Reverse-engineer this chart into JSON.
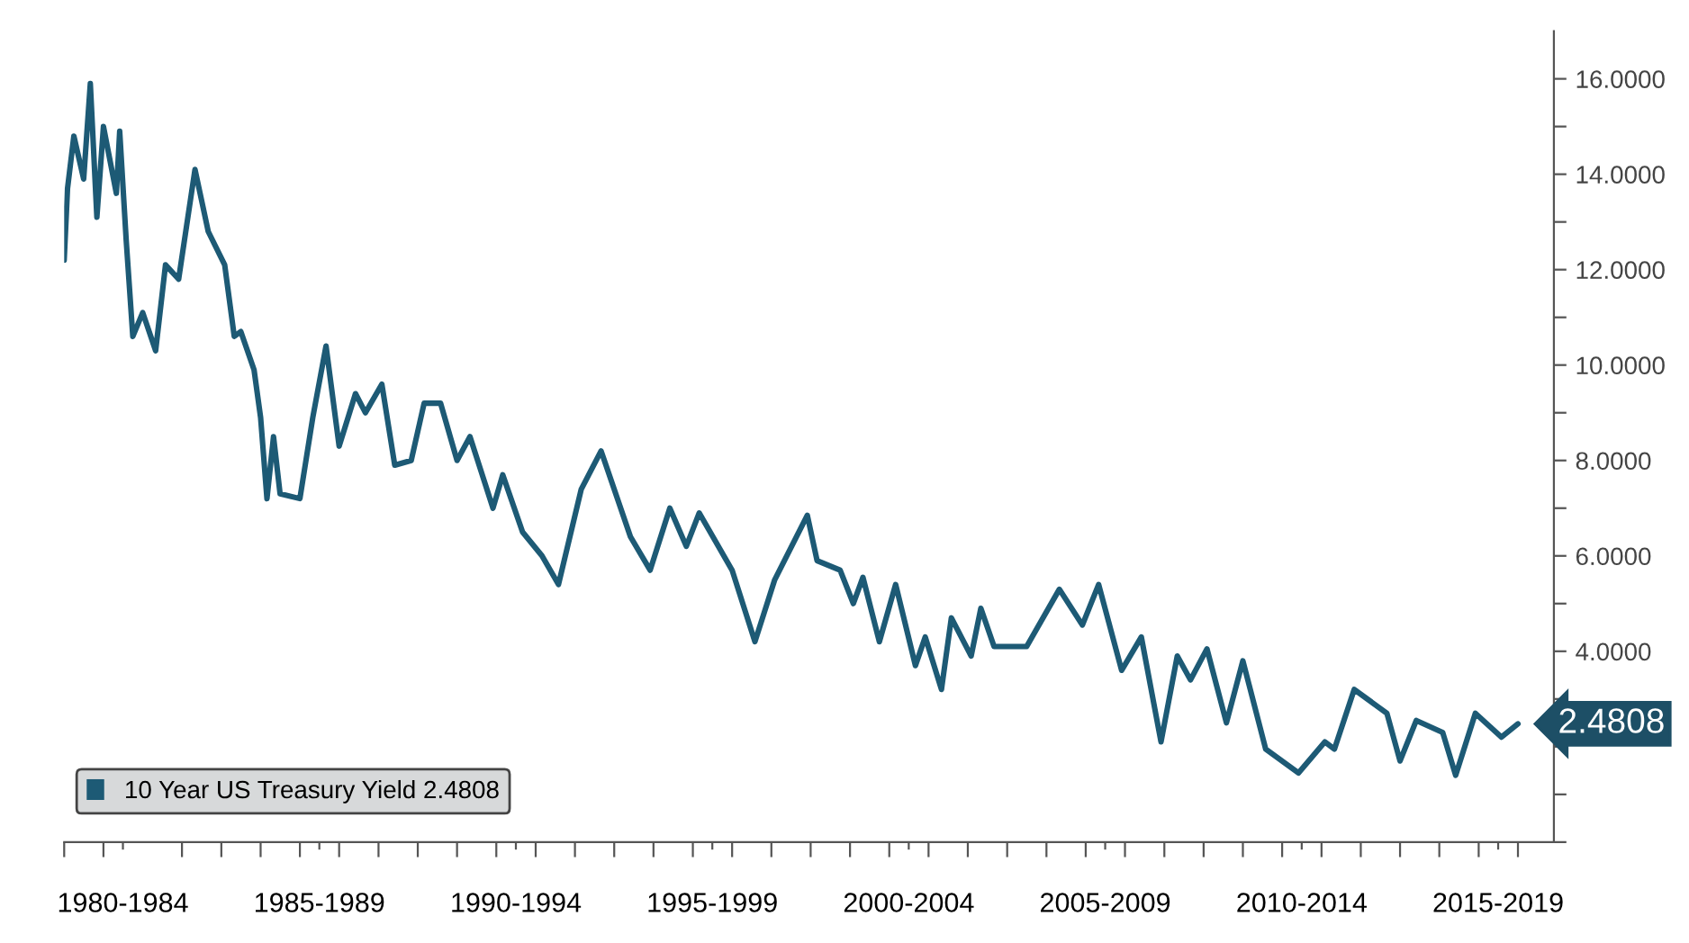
{
  "chart_data": {
    "type": "line",
    "series": [
      {
        "name": "10 Year US Treasury Yield 2.4808",
        "color": "#1d5a75",
        "x": [
          "1981-01",
          "1981-02",
          "1981-04",
          "1981-07",
          "1981-09",
          "1981-11",
          "1982-01",
          "1982-05",
          "1982-06",
          "1982-08",
          "1982-10",
          "1983-01",
          "1983-05",
          "1983-08",
          "1983-12",
          "1984-05",
          "1984-09",
          "1985-02",
          "1985-05",
          "1985-07",
          "1985-11",
          "1986-01",
          "1986-03",
          "1986-05",
          "1986-07",
          "1987-01",
          "1987-05",
          "1987-09",
          "1988-01",
          "1988-06",
          "1988-09",
          "1989-02",
          "1989-06",
          "1989-11",
          "1990-03",
          "1990-08",
          "1991-01",
          "1991-05",
          "1991-12",
          "1992-03",
          "1992-09",
          "1993-03",
          "1993-08",
          "1994-03",
          "1994-09",
          "1995-06",
          "1995-12",
          "1996-06",
          "1996-11",
          "1997-03",
          "1998-01",
          "1998-08",
          "1999-02",
          "1999-12",
          "2000-03",
          "2000-10",
          "2001-02",
          "2001-05",
          "2001-10",
          "2002-03",
          "2002-09",
          "2002-12",
          "2003-05",
          "2003-08",
          "2004-02",
          "2004-05",
          "2004-09",
          "2005-07",
          "2006-05",
          "2006-12",
          "2007-05",
          "2007-12",
          "2008-06",
          "2008-12",
          "2009-05",
          "2009-09",
          "2010-02",
          "2010-08",
          "2011-01",
          "2011-08",
          "2012-06",
          "2013-02",
          "2013-05",
          "2013-11",
          "2014-09",
          "2015-01",
          "2015-06",
          "2016-02",
          "2016-06",
          "2016-12",
          "2017-08",
          "2018-01"
        ],
        "values": [
          12.2,
          13.7,
          14.8,
          13.9,
          15.9,
          13.1,
          15.0,
          13.6,
          14.9,
          12.6,
          10.6,
          11.1,
          10.3,
          12.1,
          11.8,
          14.1,
          12.8,
          12.1,
          10.6,
          10.7,
          9.9,
          8.9,
          7.2,
          8.5,
          7.3,
          7.2,
          8.9,
          10.4,
          8.3,
          9.4,
          9.0,
          9.6,
          7.9,
          8.0,
          9.2,
          9.2,
          8.0,
          8.5,
          7.0,
          7.7,
          6.5,
          6.0,
          5.4,
          7.4,
          8.2,
          6.4,
          5.7,
          7.0,
          6.2,
          6.9,
          5.7,
          4.2,
          5.5,
          6.85,
          5.9,
          5.7,
          5.0,
          5.55,
          4.2,
          5.4,
          3.7,
          4.3,
          3.2,
          4.7,
          3.9,
          4.9,
          4.1,
          4.1,
          5.3,
          4.55,
          5.4,
          3.6,
          4.3,
          2.1,
          3.9,
          3.4,
          4.05,
          2.5,
          3.8,
          1.95,
          1.45,
          2.1,
          1.95,
          3.2,
          2.7,
          1.7,
          2.55,
          2.3,
          1.4,
          2.7,
          2.2,
          2.48
        ]
      }
    ],
    "xlim": [
      "1981-01",
      "2018-12"
    ],
    "xticks": [
      {
        "value": "1981-01",
        "label": null
      },
      {
        "value": "1982-01",
        "label": null
      },
      {
        "value": "1982-07",
        "label": "1980-1984"
      },
      {
        "value": "1984-01",
        "label": null
      },
      {
        "value": "1985-01",
        "label": null
      },
      {
        "value": "1986-01",
        "label": null
      },
      {
        "value": "1987-01",
        "label": null
      },
      {
        "value": "1987-07",
        "label": "1985-1989"
      },
      {
        "value": "1988-01",
        "label": null
      },
      {
        "value": "1989-01",
        "label": null
      },
      {
        "value": "1990-01",
        "label": null
      },
      {
        "value": "1991-01",
        "label": null
      },
      {
        "value": "1992-01",
        "label": null
      },
      {
        "value": "1992-07",
        "label": "1990-1994"
      },
      {
        "value": "1993-01",
        "label": null
      },
      {
        "value": "1994-01",
        "label": null
      },
      {
        "value": "1995-01",
        "label": null
      },
      {
        "value": "1996-01",
        "label": null
      },
      {
        "value": "1997-01",
        "label": null
      },
      {
        "value": "1997-07",
        "label": "1995-1999"
      },
      {
        "value": "1998-01",
        "label": null
      },
      {
        "value": "1999-01",
        "label": null
      },
      {
        "value": "2000-01",
        "label": null
      },
      {
        "value": "2001-01",
        "label": null
      },
      {
        "value": "2002-01",
        "label": null
      },
      {
        "value": "2002-07",
        "label": "2000-2004"
      },
      {
        "value": "2003-01",
        "label": null
      },
      {
        "value": "2004-01",
        "label": null
      },
      {
        "value": "2005-01",
        "label": null
      },
      {
        "value": "2006-01",
        "label": null
      },
      {
        "value": "2007-01",
        "label": null
      },
      {
        "value": "2007-07",
        "label": "2005-2009"
      },
      {
        "value": "2008-01",
        "label": null
      },
      {
        "value": "2009-01",
        "label": null
      },
      {
        "value": "2010-01",
        "label": null
      },
      {
        "value": "2011-01",
        "label": null
      },
      {
        "value": "2012-01",
        "label": null
      },
      {
        "value": "2012-07",
        "label": "2010-2014"
      },
      {
        "value": "2013-01",
        "label": null
      },
      {
        "value": "2014-01",
        "label": null
      },
      {
        "value": "2015-01",
        "label": null
      },
      {
        "value": "2016-01",
        "label": null
      },
      {
        "value": "2017-01",
        "label": null
      },
      {
        "value": "2017-07",
        "label": "2015-2019"
      },
      {
        "value": "2018-01",
        "label": null
      }
    ],
    "ylim": [
      0,
      17
    ],
    "yticks": [
      {
        "value": 0,
        "label": null
      },
      {
        "value": 1,
        "label": null
      },
      {
        "value": 2,
        "label": null
      },
      {
        "value": 3,
        "label": null
      },
      {
        "value": 4,
        "label": "4.0000"
      },
      {
        "value": 5,
        "label": null
      },
      {
        "value": 6,
        "label": "6.0000"
      },
      {
        "value": 7,
        "label": null
      },
      {
        "value": 8,
        "label": "8.0000"
      },
      {
        "value": 9,
        "label": null
      },
      {
        "value": 10,
        "label": "10.0000"
      },
      {
        "value": 11,
        "label": null
      },
      {
        "value": 12,
        "label": "12.0000"
      },
      {
        "value": 13,
        "label": null
      },
      {
        "value": 14,
        "label": "14.0000"
      },
      {
        "value": 15,
        "label": null
      },
      {
        "value": 16,
        "label": "16.0000"
      }
    ],
    "annotations": [
      {
        "text": "2.4808",
        "x": "2018-01",
        "y": 2.48
      }
    ],
    "legend": "bottom left",
    "grid": false
  }
}
